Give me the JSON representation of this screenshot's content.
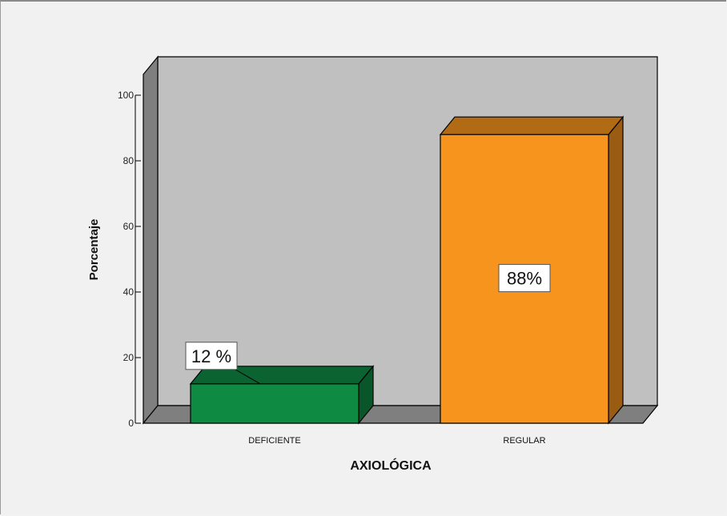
{
  "chart_data": {
    "type": "bar",
    "title": "",
    "xlabel": "AXIOLÓGICA",
    "ylabel": "Porcentaje",
    "ylim": [
      0,
      100
    ],
    "yticks": [
      0,
      20,
      40,
      60,
      80,
      100
    ],
    "categories": [
      "DEFICIENTE",
      "REGULAR"
    ],
    "values": [
      12,
      88
    ],
    "data_labels": [
      "12 %",
      "88%"
    ],
    "colors": [
      "#0e8a43",
      "#f7941d"
    ],
    "grid": false,
    "legend": "none",
    "style": "3d"
  }
}
